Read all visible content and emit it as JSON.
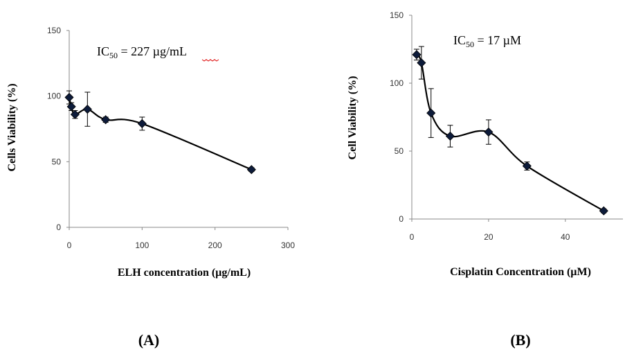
{
  "chart_data": [
    {
      "type": "line",
      "panel_label": "(A)",
      "annotation": {
        "prefix": "IC",
        "subscript": "50",
        "suffix": " = 227 µg/mL"
      },
      "xlabel": "ELH concentration (µg/mL)",
      "ylabel": "Cells Viability (%)",
      "xlim": [
        0,
        300
      ],
      "ylim": [
        0,
        150
      ],
      "xticks": [
        0,
        100,
        200,
        300
      ],
      "yticks": [
        0,
        50,
        100,
        150
      ],
      "grid": false,
      "series": [
        {
          "x": [
            0,
            3,
            8,
            25,
            50,
            100,
            250
          ],
          "values": [
            99,
            92,
            86,
            90,
            82,
            79,
            44
          ],
          "errors": [
            5,
            3,
            3,
            13,
            2,
            5,
            1.5
          ]
        }
      ]
    },
    {
      "type": "line",
      "panel_label": "(B)",
      "annotation": {
        "prefix": "IC",
        "subscript": "50",
        "suffix": " = 17 µM"
      },
      "xlabel": "Cisplatin Concentration (µM)",
      "ylabel": "Cell Viability (%)",
      "xlim": [
        0,
        55
      ],
      "ylim": [
        0,
        150
      ],
      "xticks": [
        0,
        20,
        40
      ],
      "yticks": [
        0,
        50,
        100,
        150
      ],
      "grid": false,
      "series": [
        {
          "x": [
            1.25,
            2.5,
            5,
            10,
            20,
            30,
            50
          ],
          "values": [
            121,
            115,
            78,
            61,
            64,
            39,
            6
          ],
          "errors": [
            4,
            12,
            18,
            8,
            9,
            3,
            1.5
          ]
        }
      ]
    }
  ]
}
